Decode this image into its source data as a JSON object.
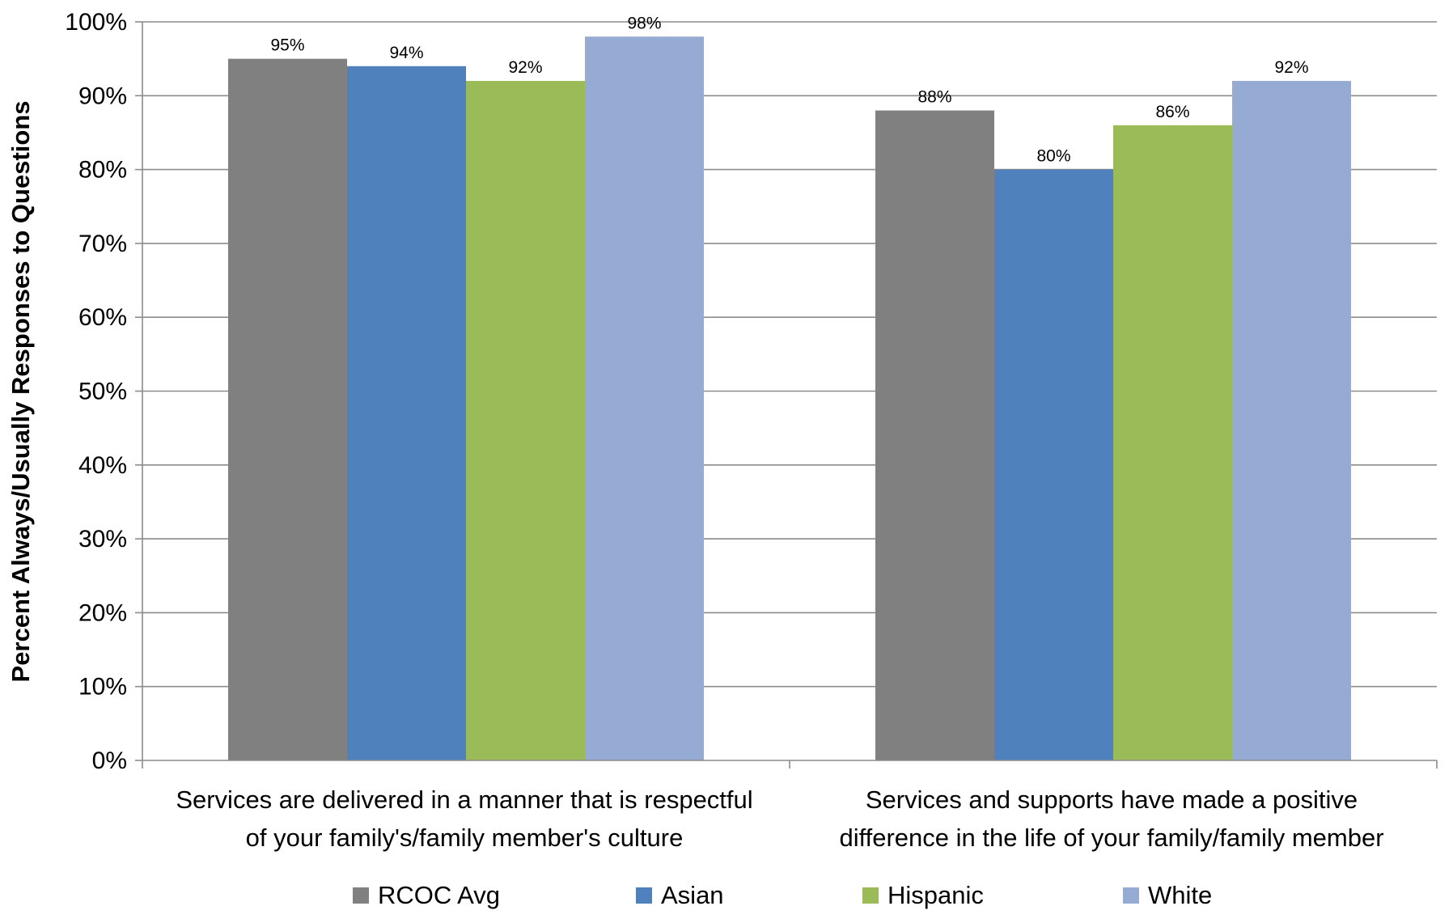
{
  "chart_data": {
    "type": "bar",
    "title": "",
    "ylabel": "Percent Always/Usually  Responses to Questions",
    "xlabel": "",
    "ylim": [
      0,
      100
    ],
    "y_ticks": [
      "0%",
      "10%",
      "20%",
      "30%",
      "40%",
      "50%",
      "60%",
      "70%",
      "80%",
      "90%",
      "100%"
    ],
    "grid": true,
    "legend_position": "bottom",
    "categories": [
      [
        "Services are delivered in a manner that is respectful",
        "of your family's/family member's culture"
      ],
      [
        "Services and supports have made a positive",
        "difference in the life of your family/family member"
      ]
    ],
    "series": [
      {
        "name": "RCOC Avg",
        "color": "#808080",
        "values": [
          95,
          88
        ],
        "labels": [
          "95%",
          "88%"
        ]
      },
      {
        "name": "Asian",
        "color": "#4f81bd",
        "values": [
          94,
          80
        ],
        "labels": [
          "94%",
          "80%"
        ]
      },
      {
        "name": "Hispanic",
        "color": "#9bbb59",
        "values": [
          92,
          86
        ],
        "labels": [
          "92%",
          "86%"
        ]
      },
      {
        "name": "White",
        "color": "#95abd3",
        "values": [
          98,
          92
        ],
        "labels": [
          "98%",
          "92%"
        ]
      }
    ]
  }
}
